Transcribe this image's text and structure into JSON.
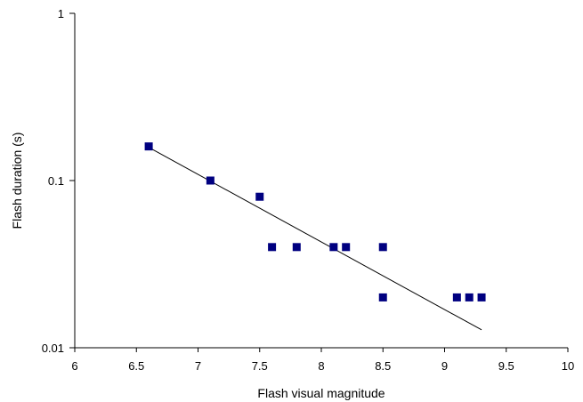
{
  "chart_data": {
    "type": "scatter",
    "title": "",
    "xlabel": "Flash visual magnitude",
    "ylabel": "Flash duration (s)",
    "xlim": [
      6,
      10
    ],
    "ylim": [
      0.01,
      1
    ],
    "y_scale": "log",
    "grid": false,
    "x_ticks": [
      6,
      6.5,
      7,
      7.5,
      8,
      8.5,
      9,
      9.5,
      10
    ],
    "x_tick_labels": [
      "6",
      "6.5",
      "7",
      "7.5",
      "8",
      "8.5",
      "9",
      "9.5",
      "10"
    ],
    "y_ticks": [
      0.01,
      0.1,
      1
    ],
    "y_tick_labels": [
      "0.01",
      "0.1",
      "1"
    ],
    "marker_color": "#000080",
    "series": [
      {
        "name": "",
        "points": [
          {
            "x": 6.6,
            "y": 0.16
          },
          {
            "x": 7.1,
            "y": 0.1
          },
          {
            "x": 7.5,
            "y": 0.08
          },
          {
            "x": 7.6,
            "y": 0.04
          },
          {
            "x": 7.8,
            "y": 0.04
          },
          {
            "x": 8.1,
            "y": 0.04
          },
          {
            "x": 8.2,
            "y": 0.04
          },
          {
            "x": 8.5,
            "y": 0.04
          },
          {
            "x": 8.5,
            "y": 0.02
          },
          {
            "x": 9.1,
            "y": 0.02
          },
          {
            "x": 9.2,
            "y": 0.02
          },
          {
            "x": 9.3,
            "y": 0.02
          }
        ]
      }
    ],
    "trendline": {
      "type": "exponential",
      "points": [
        {
          "x": 6.6,
          "y": 0.158
        },
        {
          "x": 9.3,
          "y": 0.0128
        }
      ]
    }
  }
}
